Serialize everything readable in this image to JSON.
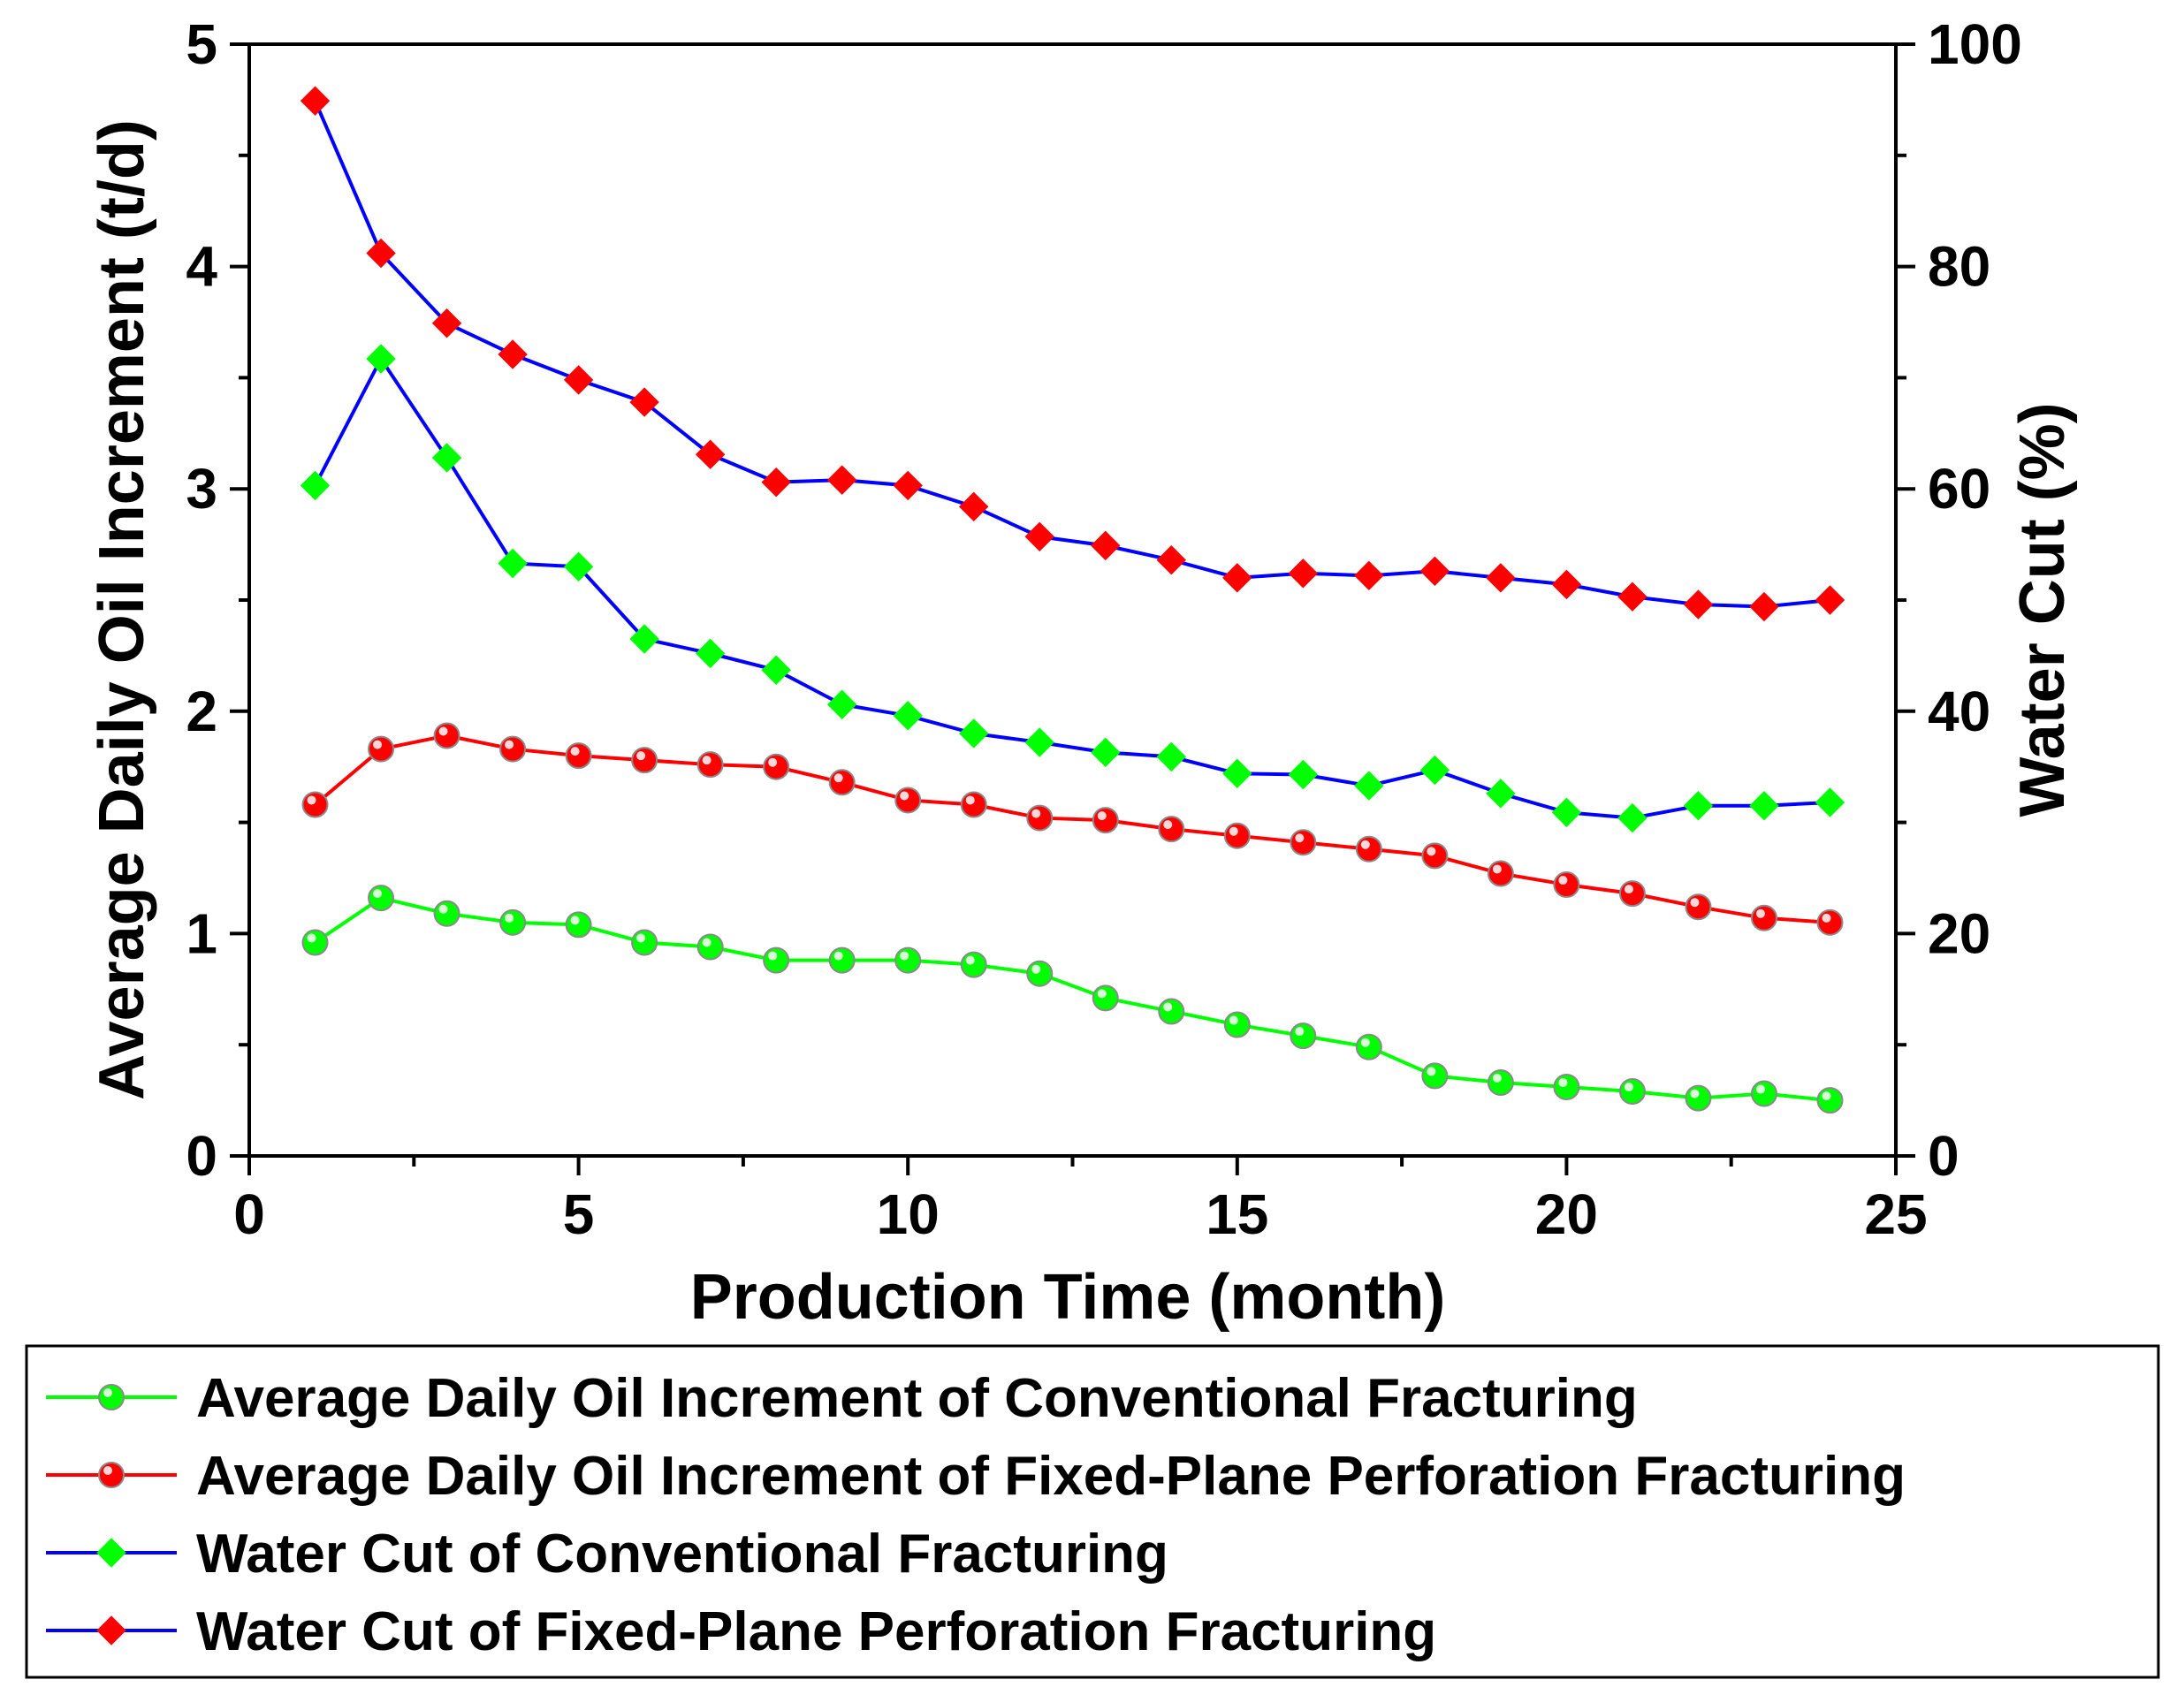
{
  "chart_data": {
    "type": "line",
    "title": "",
    "xlabel": "Production Time (month)",
    "ylabel": "Average Daily Oil Increment (t/d)",
    "y2label": "Water Cut (%)",
    "xlim": [
      0,
      25
    ],
    "ylim": [
      0,
      5
    ],
    "y2lim": [
      0,
      100
    ],
    "grid": false,
    "legend_position": "bottom",
    "x": [
      1,
      2,
      3,
      4,
      5,
      6,
      7,
      8,
      9,
      10,
      11,
      12,
      13,
      14,
      15,
      16,
      17,
      18,
      19,
      20,
      21,
      22,
      23,
      24
    ],
    "x_ticks": [
      "0",
      "5",
      "10",
      "15",
      "20",
      "25"
    ],
    "y_ticks": [
      "0",
      "1",
      "2",
      "3",
      "4",
      "5"
    ],
    "y2_ticks": [
      "0",
      "20",
      "40",
      "60",
      "80",
      "100"
    ],
    "series": [
      {
        "name": "Average Daily Oil Increment of Conventional Fracturing",
        "axis": "left",
        "line_color": "#00ff00",
        "marker_color": "#00ff00",
        "marker": "circle",
        "values": [
          0.96,
          1.16,
          1.09,
          1.05,
          1.04,
          0.96,
          0.94,
          0.88,
          0.88,
          0.88,
          0.86,
          0.82,
          0.71,
          0.65,
          0.59,
          0.54,
          0.49,
          0.36,
          0.33,
          0.31,
          0.29,
          0.26,
          0.28,
          0.25
        ]
      },
      {
        "name": "Average Daily Oil Increment of Fixed-Plane Perforation Fracturing",
        "axis": "left",
        "line_color": "#ff0000",
        "marker_color": "#ff0000",
        "marker": "circle",
        "values": [
          1.58,
          1.83,
          1.89,
          1.83,
          1.8,
          1.78,
          1.76,
          1.75,
          1.68,
          1.6,
          1.58,
          1.52,
          1.51,
          1.47,
          1.44,
          1.41,
          1.38,
          1.35,
          1.27,
          1.22,
          1.18,
          1.12,
          1.07,
          1.05
        ]
      },
      {
        "name": "Water Cut of Conventional Fracturing",
        "axis": "right",
        "line_color": "#0000ff",
        "marker_color": "#00ff00",
        "marker": "diamond",
        "values": [
          60.3,
          71.7,
          62.8,
          53.3,
          53.0,
          46.5,
          45.2,
          43.7,
          40.6,
          39.6,
          38.0,
          37.2,
          36.3,
          35.9,
          34.4,
          34.3,
          33.3,
          34.7,
          32.6,
          30.9,
          30.4,
          31.5,
          31.5,
          31.8
        ]
      },
      {
        "name": "Water Cut of Fixed-Plane Perforation Fracturing",
        "axis": "right",
        "line_color": "#0000ff",
        "marker_color": "#ff0000",
        "marker": "diamond",
        "values": [
          94.9,
          81.2,
          74.9,
          72.1,
          69.8,
          67.8,
          63.1,
          60.6,
          60.8,
          60.3,
          58.4,
          55.7,
          54.9,
          53.6,
          52.0,
          52.4,
          52.2,
          52.6,
          52.0,
          51.4,
          50.3,
          49.6,
          49.4,
          50.0
        ]
      }
    ]
  }
}
